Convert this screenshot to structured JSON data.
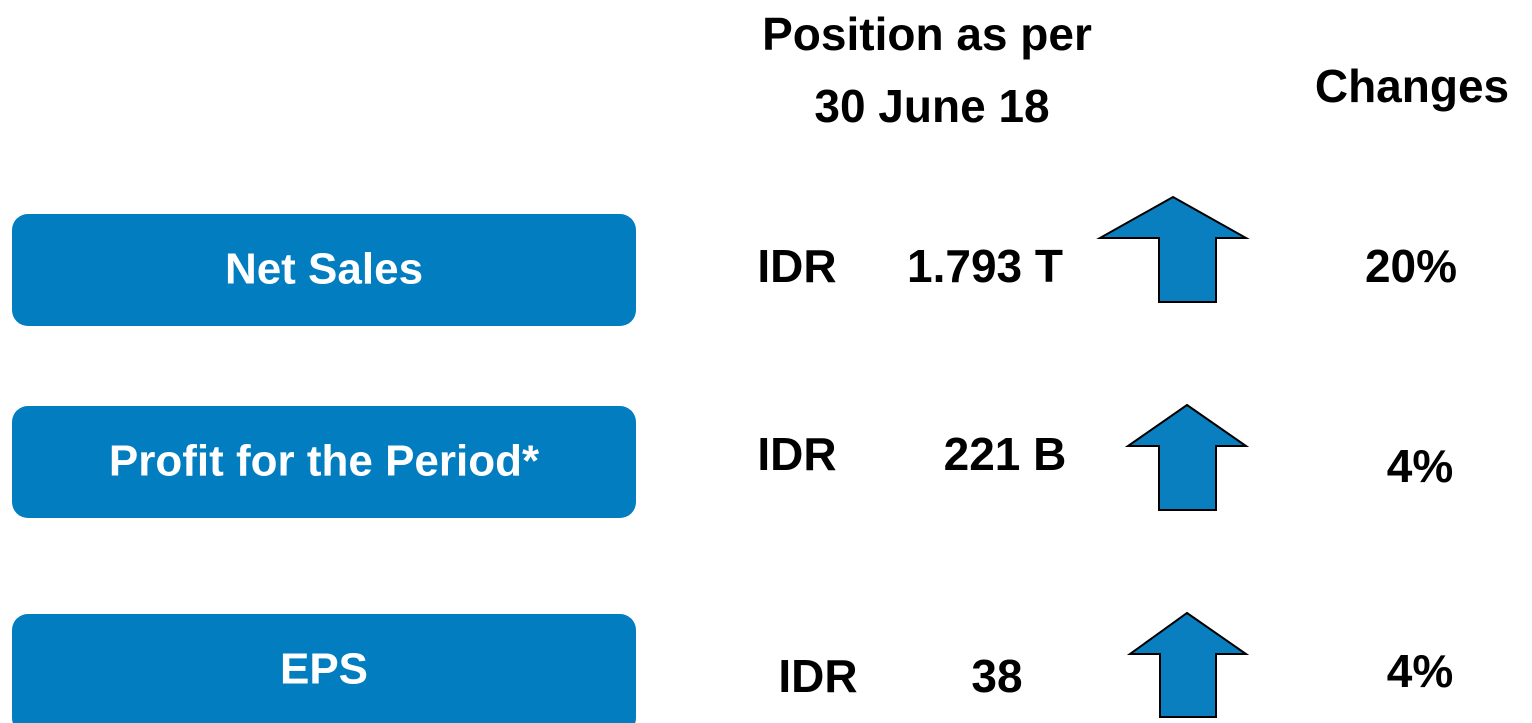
{
  "header": {
    "position": [
      "Position as per",
      "30 June 18"
    ],
    "changes": "Changes"
  },
  "rows": [
    {
      "label": "Net Sales",
      "currency": "IDR",
      "amount": "1.793 T",
      "change": "20%"
    },
    {
      "label": "Profit for the Period*",
      "currency": "IDR",
      "amount": "221 B",
      "change": "4%"
    },
    {
      "label": "EPS",
      "currency": "IDR",
      "amount": "38",
      "change": "4%"
    }
  ]
}
